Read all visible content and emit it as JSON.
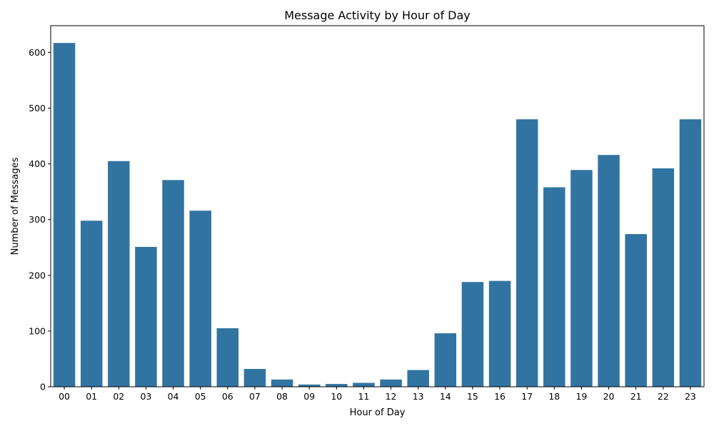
{
  "chart_data": {
    "type": "bar",
    "title": "Message Activity by Hour of Day",
    "xlabel": "Hour of Day",
    "ylabel": "Number of Messages",
    "categories": [
      "00",
      "01",
      "02",
      "03",
      "04",
      "05",
      "06",
      "07",
      "08",
      "09",
      "10",
      "11",
      "12",
      "13",
      "14",
      "15",
      "16",
      "17",
      "18",
      "19",
      "20",
      "21",
      "22",
      "23"
    ],
    "values": [
      617,
      298,
      405,
      251,
      371,
      316,
      105,
      32,
      13,
      4,
      5,
      7,
      13,
      30,
      96,
      188,
      190,
      480,
      358,
      389,
      416,
      274,
      392,
      480
    ],
    "ylim": [
      0,
      648
    ],
    "yticks": [
      0,
      100,
      200,
      300,
      400,
      500,
      600
    ],
    "grid": false,
    "colors": {
      "bar": "#3274a1",
      "axis": "#000000"
    }
  }
}
